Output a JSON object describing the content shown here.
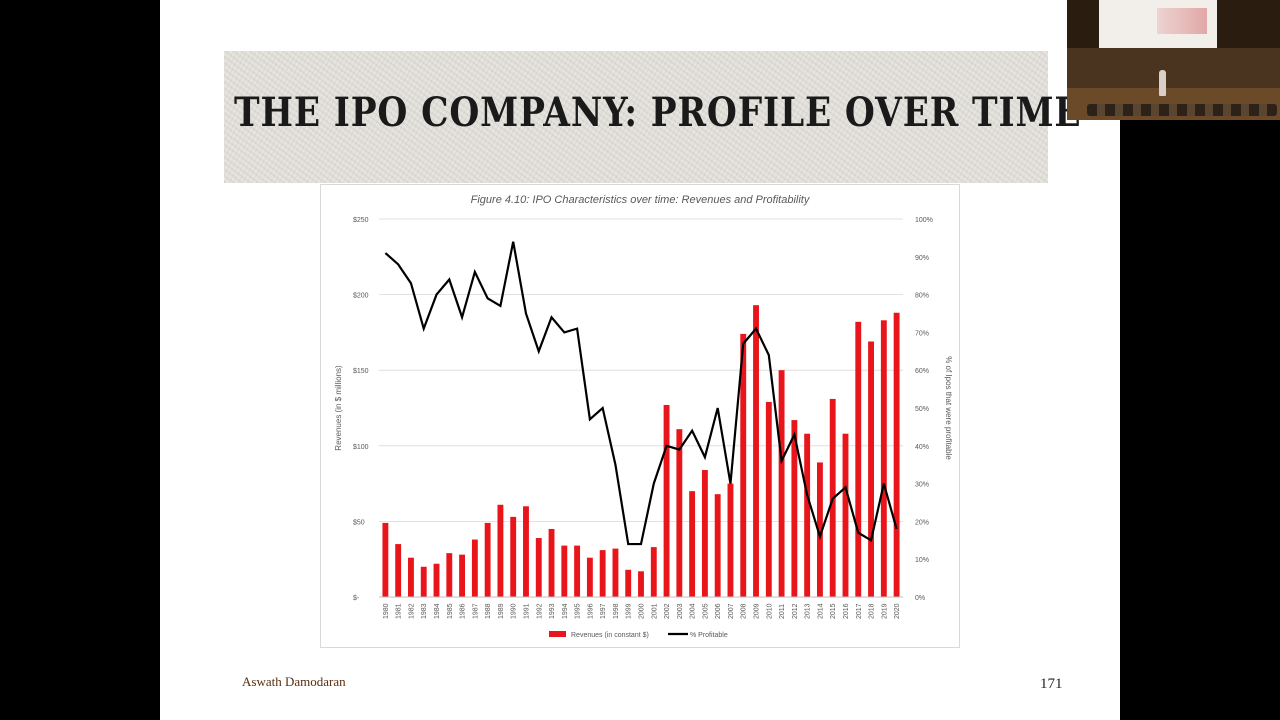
{
  "slide": {
    "title": "THE IPO COMPANY: PROFILE OVER TIME",
    "author": "Aswath Damodaran",
    "page_number": "171"
  },
  "colors": {
    "bars": "#e8161b",
    "line": "#000000",
    "grid": "#d9d9d9",
    "title_text": "#1a1a1a",
    "author_text": "#5a2d0c"
  },
  "chart_data": {
    "type": "bar",
    "title": "Figure 4.10: IPO Characteristics over time: Revenues and Profitability",
    "ylabel": "Revenues (in $ millions)",
    "y2label": "% of Ipos that were profitable",
    "ylim": [
      0,
      250
    ],
    "y_ticks": [
      "$-",
      "$50",
      "$100",
      "$150",
      "$200",
      "$250"
    ],
    "y2lim": [
      0,
      100
    ],
    "y2_ticks": [
      "0%",
      "10%",
      "20%",
      "30%",
      "40%",
      "50%",
      "60%",
      "70%",
      "80%",
      "90%",
      "100%"
    ],
    "grid": true,
    "legend_position": "bottom",
    "categories": [
      "1980",
      "1981",
      "1982",
      "1983",
      "1984",
      "1985",
      "1986",
      "1987",
      "1988",
      "1989",
      "1990",
      "1991",
      "1992",
      "1993",
      "1994",
      "1995",
      "1996",
      "1997",
      "1998",
      "1999",
      "2000",
      "2001",
      "2002",
      "2003",
      "2004",
      "2005",
      "2006",
      "2007",
      "2008",
      "2009",
      "2010",
      "2011",
      "2012",
      "2013",
      "2014",
      "2015",
      "2016",
      "2017",
      "2018",
      "2019",
      "2020"
    ],
    "series": [
      {
        "name": "Revenues (in constant $)",
        "type": "bar",
        "axis": "left",
        "values": [
          49,
          35,
          26,
          20,
          22,
          29,
          28,
          38,
          49,
          61,
          53,
          60,
          39,
          45,
          34,
          34,
          26,
          31,
          32,
          18,
          17,
          33,
          127,
          111,
          70,
          84,
          68,
          75,
          174,
          193,
          129,
          150,
          117,
          108,
          89,
          131,
          108,
          182,
          169,
          183,
          188
        ]
      },
      {
        "name": "% Profitable",
        "type": "line",
        "axis": "right",
        "values": [
          91,
          88,
          83,
          71,
          80,
          84,
          74,
          86,
          79,
          77,
          94,
          75,
          65,
          74,
          70,
          71,
          47,
          50,
          35,
          14,
          14,
          30,
          40,
          39,
          44,
          37,
          50,
          30,
          67,
          71,
          64,
          36,
          43,
          27,
          16,
          26,
          29,
          17,
          15,
          30,
          18
        ]
      }
    ]
  }
}
